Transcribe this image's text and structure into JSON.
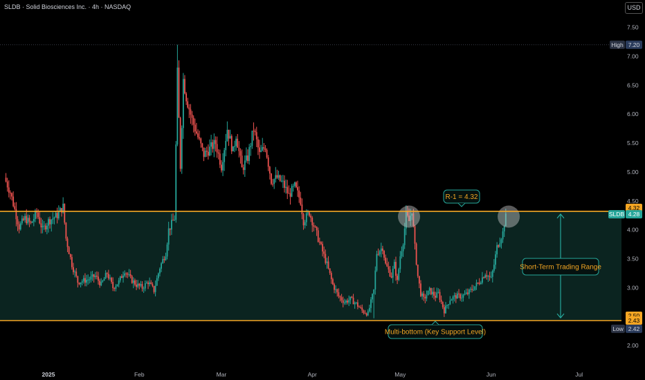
{
  "header": {
    "symbol_line": "SLDB · Solid Biosciences Inc. · 4h · NASDAQ",
    "currency": "USD"
  },
  "colors": {
    "up": "#26a69a",
    "down": "#ef5350",
    "level": "#f5a623",
    "zone": "#0b2420",
    "annot": "#26a69a",
    "annot_text": "#f5a623"
  },
  "chart_data": {
    "type": "candlestick",
    "title": "SLDB · Solid Biosciences Inc. · 4h · NASDAQ",
    "ylim": [
      1.75,
      7.6
    ],
    "y_ticks": [
      "2.00",
      "2.50",
      "3.00",
      "3.50",
      "4.00",
      "4.50",
      "5.00",
      "5.50",
      "6.00",
      "6.50",
      "7.00",
      "7.50"
    ],
    "x_ticks": [
      {
        "label": "2025",
        "day": 0
      },
      {
        "label": "Feb",
        "day": 31
      },
      {
        "label": "Mar",
        "day": 59
      },
      {
        "label": "Apr",
        "day": 90
      },
      {
        "label": "May",
        "day": 120
      },
      {
        "label": "Jun",
        "day": 151
      },
      {
        "label": "Jul",
        "day": 181
      }
    ],
    "x_day_range": [
      -15,
      193
    ],
    "price_path": [
      [
        -15,
        4.9
      ],
      [
        -13,
        4.65
      ],
      [
        -10,
        4.05
      ],
      [
        -8,
        4.2
      ],
      [
        -6,
        4.1
      ],
      [
        -4,
        4.3
      ],
      [
        -2,
        4.0
      ],
      [
        0,
        4.15
      ],
      [
        3,
        4.25
      ],
      [
        5,
        4.4
      ],
      [
        6,
        3.85
      ],
      [
        8,
        3.4
      ],
      [
        10,
        3.1
      ],
      [
        12,
        3.12
      ],
      [
        14,
        3.15
      ],
      [
        16,
        3.2
      ],
      [
        18,
        3.05
      ],
      [
        20,
        3.25
      ],
      [
        22,
        3.0
      ],
      [
        24,
        3.1
      ],
      [
        26,
        3.3
      ],
      [
        28,
        3.15
      ],
      [
        30,
        3.05
      ],
      [
        32,
        3.0
      ],
      [
        34,
        3.1
      ],
      [
        36,
        2.95
      ],
      [
        38,
        3.35
      ],
      [
        40,
        3.6
      ],
      [
        41,
        4.0
      ],
      [
        43,
        4.2
      ],
      [
        44,
        6.7
      ],
      [
        45,
        5.1
      ],
      [
        46,
        6.6
      ],
      [
        47,
        6.3
      ],
      [
        49,
        5.9
      ],
      [
        51,
        5.6
      ],
      [
        53,
        5.3
      ],
      [
        55,
        5.4
      ],
      [
        57,
        5.5
      ],
      [
        59,
        5.1
      ],
      [
        61,
        5.75
      ],
      [
        63,
        5.35
      ],
      [
        64,
        5.65
      ],
      [
        66,
        5.05
      ],
      [
        68,
        5.25
      ],
      [
        70,
        5.75
      ],
      [
        72,
        5.3
      ],
      [
        74,
        5.45
      ],
      [
        76,
        4.85
      ],
      [
        78,
        4.9
      ],
      [
        80,
        4.8
      ],
      [
        82,
        4.6
      ],
      [
        84,
        4.75
      ],
      [
        86,
        4.5
      ],
      [
        87,
        4.15
      ],
      [
        89,
        4.3
      ],
      [
        91,
        4.0
      ],
      [
        93,
        3.7
      ],
      [
        95,
        3.4
      ],
      [
        97,
        3.05
      ],
      [
        99,
        2.85
      ],
      [
        101,
        2.75
      ],
      [
        103,
        2.8
      ],
      [
        105,
        2.72
      ],
      [
        107,
        2.6
      ],
      [
        109,
        2.55
      ],
      [
        111,
        2.95
      ],
      [
        112,
        3.6
      ],
      [
        114,
        3.7
      ],
      [
        115,
        3.4
      ],
      [
        117,
        3.2
      ],
      [
        118,
        3.4
      ],
      [
        119,
        3.1
      ],
      [
        120,
        3.55
      ],
      [
        121,
        3.8
      ],
      [
        122,
        4.25
      ],
      [
        123,
        4.15
      ],
      [
        124,
        4.35
      ],
      [
        125,
        3.7
      ],
      [
        126,
        3.2
      ],
      [
        127,
        2.9
      ],
      [
        128,
        2.8
      ],
      [
        130,
        2.95
      ],
      [
        132,
        2.85
      ],
      [
        133,
        2.9
      ],
      [
        135,
        2.6
      ],
      [
        137,
        2.8
      ],
      [
        139,
        2.85
      ],
      [
        141,
        2.85
      ],
      [
        143,
        2.9
      ],
      [
        145,
        3.0
      ],
      [
        147,
        3.1
      ],
      [
        149,
        3.25
      ],
      [
        151,
        3.15
      ],
      [
        152,
        3.4
      ],
      [
        153,
        3.7
      ],
      [
        155,
        3.95
      ],
      [
        156,
        4.28
      ]
    ],
    "levels": [
      {
        "name": "resistance",
        "value": 4.32,
        "axis_label": "4.32"
      },
      {
        "name": "support",
        "value": 2.43,
        "axis_label": "2.43"
      }
    ],
    "high": {
      "label": "High",
      "value": 7.2,
      "text": "7.20"
    },
    "low": {
      "label": "Low",
      "value": 2.42,
      "text": "2.42"
    },
    "last": {
      "symbol": "SLDB",
      "value": 4.28,
      "text": "4.28"
    },
    "support_axis_extra": "2.50",
    "annotations": {
      "resistance_label": "R-1 = 4.32",
      "support_label": "Multi-bottom (Key Support Level)",
      "range_label": "Short-Term Trading Range"
    },
    "highlights": [
      {
        "day": 123,
        "value": 4.3
      },
      {
        "day": 157,
        "value": 4.3
      }
    ]
  }
}
